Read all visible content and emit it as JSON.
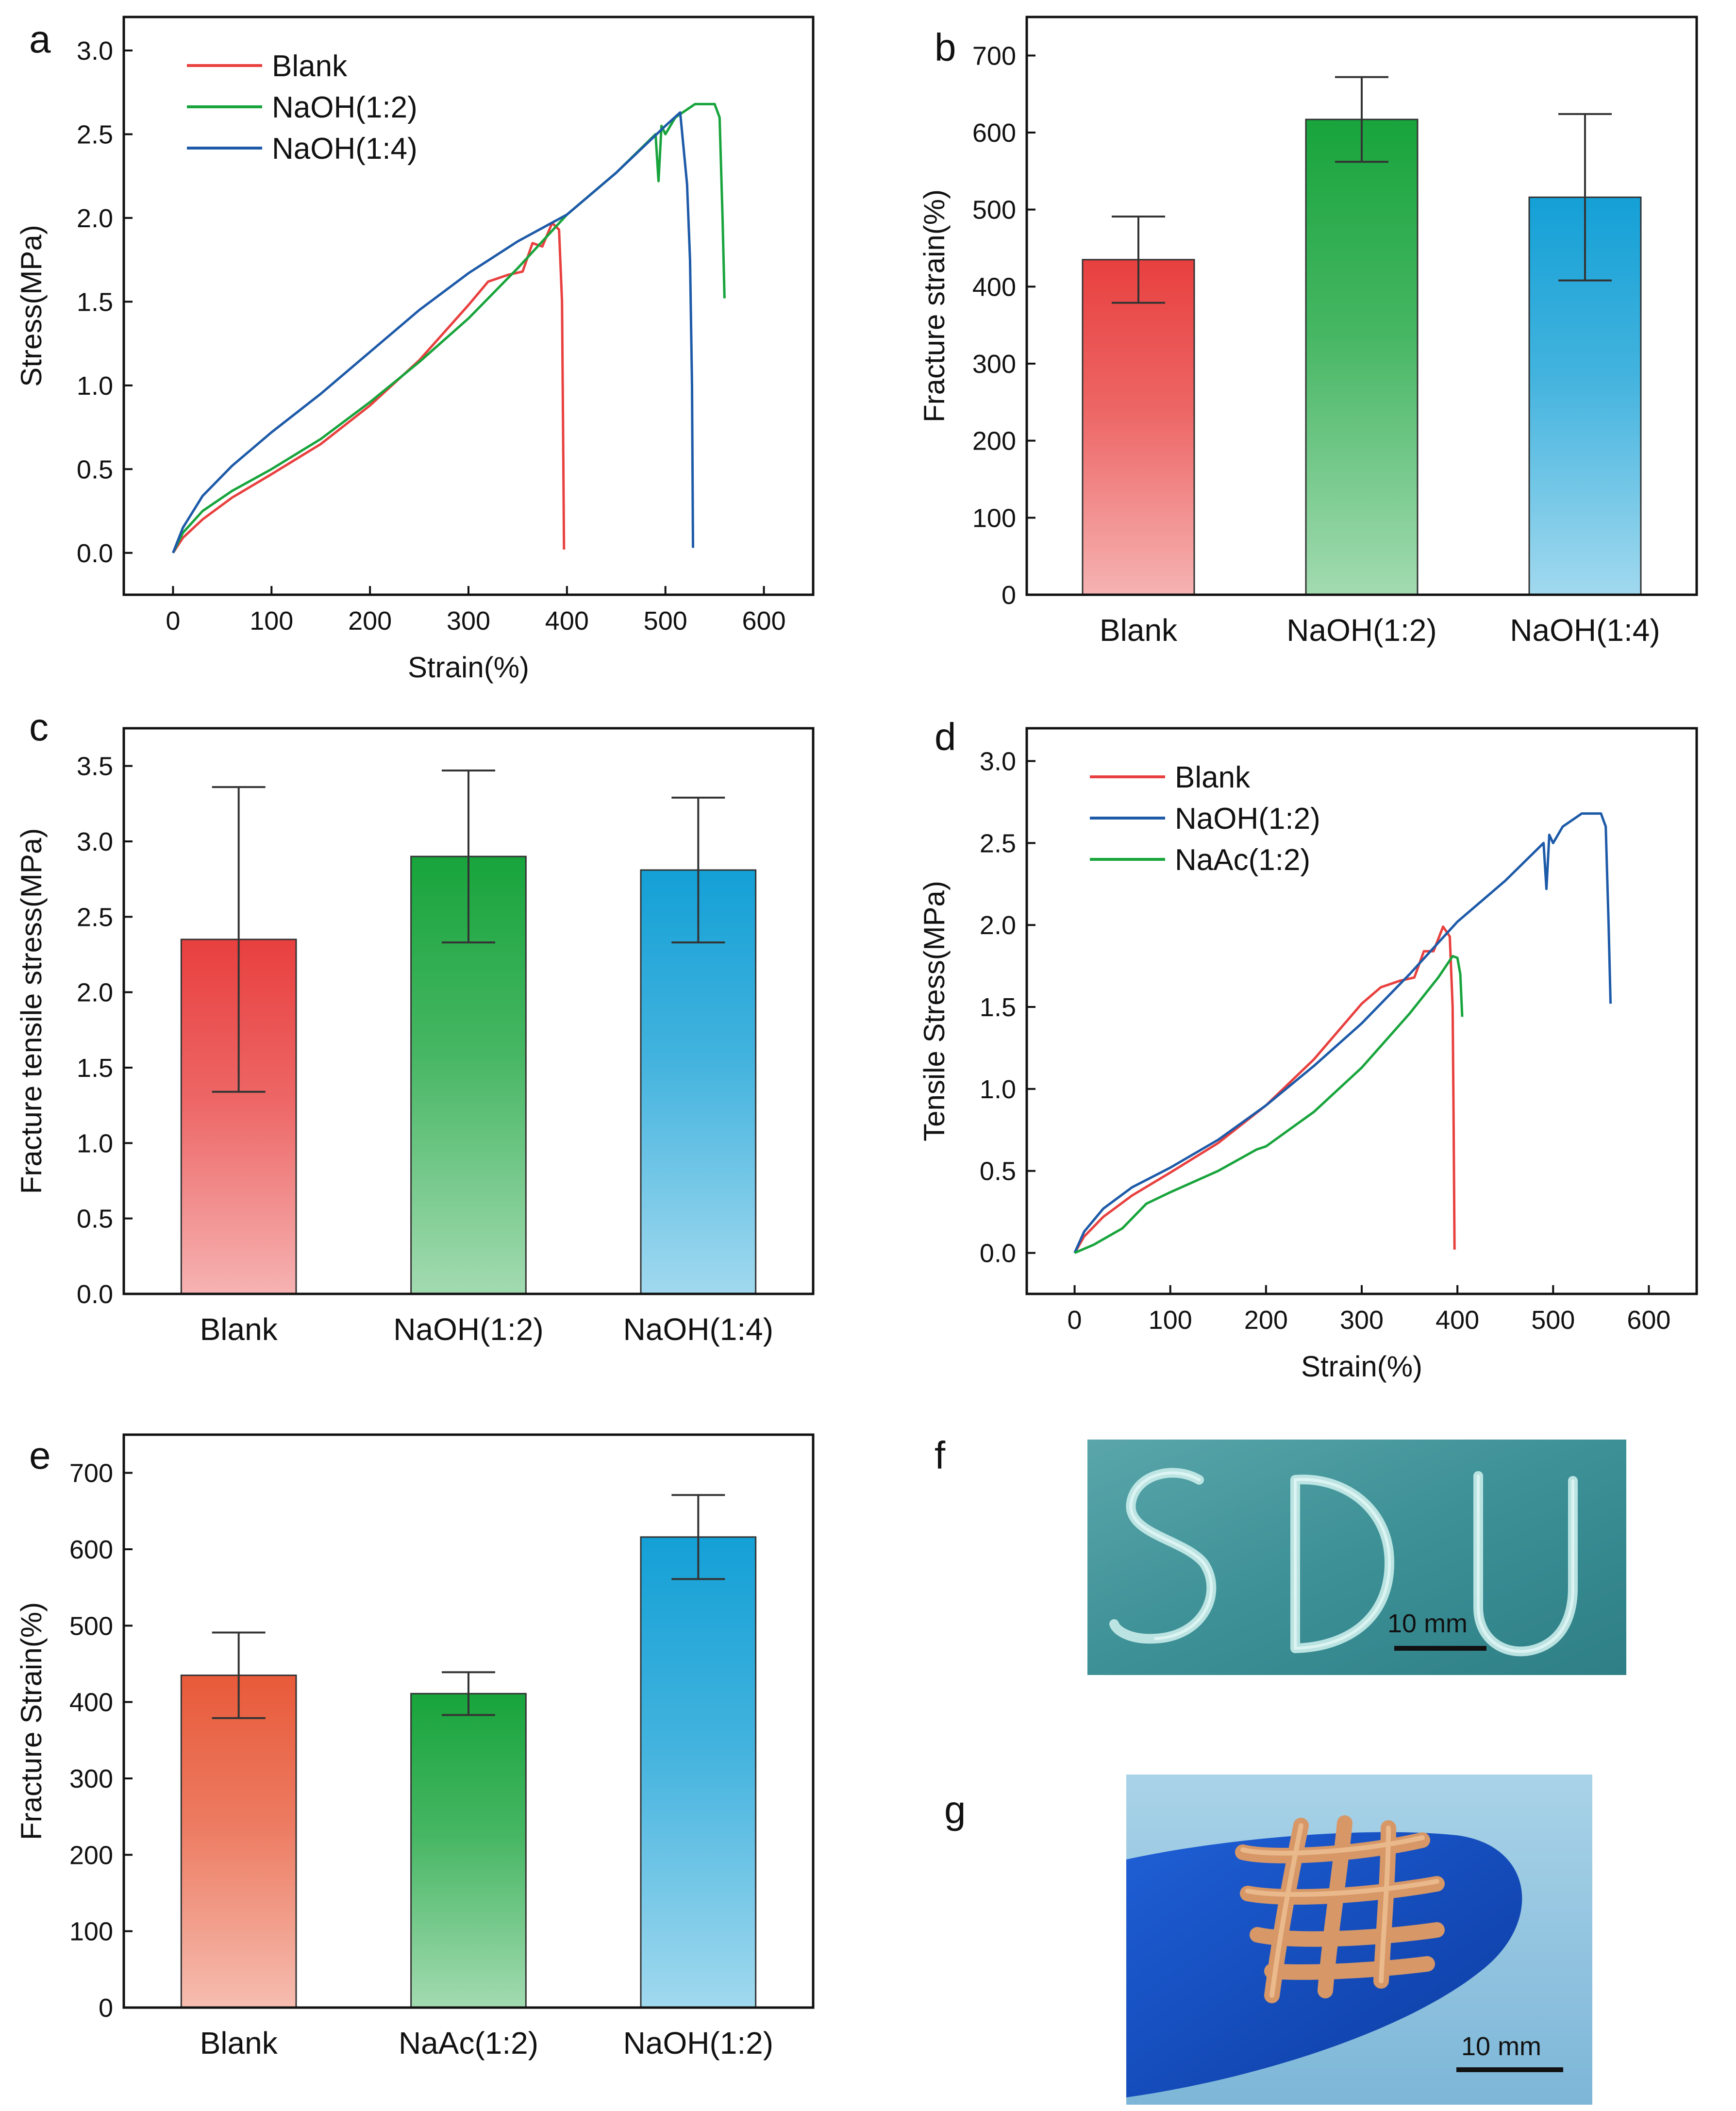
{
  "panels": {
    "a": {
      "label": "a"
    },
    "b": {
      "label": "b"
    },
    "c": {
      "label": "c"
    },
    "d": {
      "label": "d"
    },
    "e": {
      "label": "e"
    },
    "f": {
      "label": "f",
      "text": "SDU",
      "scale_bar": "10 mm"
    },
    "g": {
      "label": "g",
      "scale_bar": "10 mm"
    }
  },
  "colors": {
    "red": "#e8403f",
    "green": "#18a43c",
    "blue": "#1d5aa8",
    "cyan": "#14a0d6",
    "orange": "#e85a3a"
  },
  "chart_data": [
    {
      "panel": "a",
      "type": "line",
      "title": "",
      "xlabel": "Strain(%)",
      "ylabel": "Stress(MPa)",
      "xlim": [
        -50,
        650
      ],
      "ylim": [
        -0.25,
        3.2
      ],
      "xticks": [
        0,
        100,
        200,
        300,
        400,
        500,
        600
      ],
      "yticks": [
        0.0,
        0.5,
        1.0,
        1.5,
        2.0,
        2.5,
        3.0
      ],
      "legend": "top-left",
      "series": [
        {
          "name": "Blank",
          "color": "#e8403f",
          "points": [
            [
              0,
              0
            ],
            [
              10,
              0.09
            ],
            [
              30,
              0.2
            ],
            [
              60,
              0.33
            ],
            [
              100,
              0.47
            ],
            [
              150,
              0.65
            ],
            [
              200,
              0.88
            ],
            [
              250,
              1.15
            ],
            [
              300,
              1.48
            ],
            [
              320,
              1.62
            ],
            [
              340,
              1.66
            ],
            [
              355,
              1.68
            ],
            [
              365,
              1.85
            ],
            [
              375,
              1.83
            ],
            [
              385,
              1.97
            ],
            [
              392,
              1.93
            ],
            [
              395,
              1.5
            ],
            [
              396,
              0.8
            ],
            [
              397,
              0.02
            ]
          ]
        },
        {
          "name": "NaOH(1:2)",
          "color": "#18a43c",
          "points": [
            [
              0,
              0
            ],
            [
              10,
              0.12
            ],
            [
              30,
              0.25
            ],
            [
              60,
              0.37
            ],
            [
              100,
              0.5
            ],
            [
              150,
              0.68
            ],
            [
              200,
              0.9
            ],
            [
              250,
              1.14
            ],
            [
              300,
              1.4
            ],
            [
              350,
              1.7
            ],
            [
              400,
              2.02
            ],
            [
              450,
              2.27
            ],
            [
              490,
              2.5
            ],
            [
              493,
              2.22
            ],
            [
              496,
              2.55
            ],
            [
              500,
              2.5
            ],
            [
              510,
              2.6
            ],
            [
              530,
              2.68
            ],
            [
              550,
              2.68
            ],
            [
              555,
              2.6
            ],
            [
              558,
              2.0
            ],
            [
              560,
              1.52
            ]
          ]
        },
        {
          "name": "NaOH(1:4)",
          "color": "#1d5aa8",
          "points": [
            [
              0,
              0
            ],
            [
              10,
              0.15
            ],
            [
              30,
              0.34
            ],
            [
              60,
              0.52
            ],
            [
              100,
              0.72
            ],
            [
              150,
              0.95
            ],
            [
              200,
              1.2
            ],
            [
              250,
              1.45
            ],
            [
              300,
              1.67
            ],
            [
              350,
              1.86
            ],
            [
              400,
              2.02
            ],
            [
              450,
              2.27
            ],
            [
              500,
              2.55
            ],
            [
              515,
              2.63
            ],
            [
              522,
              2.2
            ],
            [
              525,
              1.75
            ],
            [
              527,
              1.0
            ],
            [
              528,
              0.03
            ]
          ]
        }
      ]
    },
    {
      "panel": "b",
      "type": "bar",
      "title": "",
      "xlabel": "",
      "ylabel": "Fracture strain(%)",
      "ylim": [
        0,
        750
      ],
      "yticks": [
        0,
        100,
        200,
        300,
        400,
        500,
        600,
        700
      ],
      "categories": [
        "Blank",
        "NaOH(1:2)",
        "NaOH(1:4)"
      ],
      "values": [
        435,
        617,
        516
      ],
      "errors": [
        56,
        55,
        108
      ],
      "bar_colors": [
        "#e8403f",
        "#18a43c",
        "#14a0d6"
      ]
    },
    {
      "panel": "c",
      "type": "bar",
      "title": "",
      "xlabel": "",
      "ylabel": "Fracture tensile stress(MPa)",
      "ylim": [
        0,
        3.75
      ],
      "yticks": [
        0.0,
        0.5,
        1.0,
        1.5,
        2.0,
        2.5,
        3.0,
        3.5
      ],
      "categories": [
        "Blank",
        "NaOH(1:2)",
        "NaOH(1:4)"
      ],
      "values": [
        2.35,
        2.9,
        2.81
      ],
      "errors": [
        1.01,
        0.57,
        0.48
      ],
      "bar_colors": [
        "#e8403f",
        "#18a43c",
        "#14a0d6"
      ]
    },
    {
      "panel": "d",
      "type": "line",
      "title": "",
      "xlabel": "Strain(%)",
      "ylabel": "Tensile Stress(MPa)",
      "xlim": [
        -50,
        650
      ],
      "ylim": [
        -0.25,
        3.2
      ],
      "xticks": [
        0,
        100,
        200,
        300,
        400,
        500,
        600
      ],
      "yticks": [
        0.0,
        0.5,
        1.0,
        1.5,
        2.0,
        2.5,
        3.0
      ],
      "legend": "top-left",
      "series": [
        {
          "name": "Blank",
          "color": "#e8403f",
          "points": [
            [
              0,
              0
            ],
            [
              10,
              0.1
            ],
            [
              30,
              0.22
            ],
            [
              60,
              0.35
            ],
            [
              100,
              0.49
            ],
            [
              150,
              0.67
            ],
            [
              200,
              0.9
            ],
            [
              250,
              1.18
            ],
            [
              300,
              1.52
            ],
            [
              320,
              1.62
            ],
            [
              340,
              1.66
            ],
            [
              355,
              1.68
            ],
            [
              365,
              1.84
            ],
            [
              375,
              1.84
            ],
            [
              385,
              1.99
            ],
            [
              392,
              1.93
            ],
            [
              395,
              1.5
            ],
            [
              396,
              0.8
            ],
            [
              397,
              0.02
            ]
          ]
        },
        {
          "name": "NaOH(1:2)",
          "color": "#1d5aa8",
          "points": [
            [
              0,
              0
            ],
            [
              10,
              0.13
            ],
            [
              30,
              0.27
            ],
            [
              60,
              0.4
            ],
            [
              100,
              0.52
            ],
            [
              150,
              0.69
            ],
            [
              200,
              0.9
            ],
            [
              250,
              1.14
            ],
            [
              300,
              1.4
            ],
            [
              350,
              1.7
            ],
            [
              400,
              2.02
            ],
            [
              450,
              2.27
            ],
            [
              490,
              2.5
            ],
            [
              493,
              2.22
            ],
            [
              496,
              2.55
            ],
            [
              500,
              2.5
            ],
            [
              510,
              2.6
            ],
            [
              530,
              2.68
            ],
            [
              550,
              2.68
            ],
            [
              555,
              2.6
            ],
            [
              558,
              2.0
            ],
            [
              560,
              1.52
            ]
          ]
        },
        {
          "name": "NaAc(1:2)",
          "color": "#18a43c",
          "points": [
            [
              0,
              0
            ],
            [
              20,
              0.05
            ],
            [
              50,
              0.15
            ],
            [
              75,
              0.3
            ],
            [
              100,
              0.37
            ],
            [
              150,
              0.5
            ],
            [
              190,
              0.63
            ],
            [
              200,
              0.65
            ],
            [
              250,
              0.86
            ],
            [
              300,
              1.13
            ],
            [
              350,
              1.46
            ],
            [
              380,
              1.68
            ],
            [
              395,
              1.81
            ],
            [
              400,
              1.8
            ],
            [
              403,
              1.7
            ],
            [
              405,
              1.44
            ]
          ]
        }
      ]
    },
    {
      "panel": "e",
      "type": "bar",
      "title": "",
      "xlabel": "",
      "ylabel": "Fracture Strain(%)",
      "ylim": [
        0,
        750
      ],
      "yticks": [
        0,
        100,
        200,
        300,
        400,
        500,
        600,
        700
      ],
      "categories": [
        "Blank",
        "NaAc(1:2)",
        "NaOH(1:2)"
      ],
      "values": [
        435,
        411,
        616
      ],
      "errors": [
        56,
        28,
        55
      ],
      "bar_colors": [
        "#e85a3a",
        "#18a43c",
        "#14a0d6"
      ]
    }
  ]
}
